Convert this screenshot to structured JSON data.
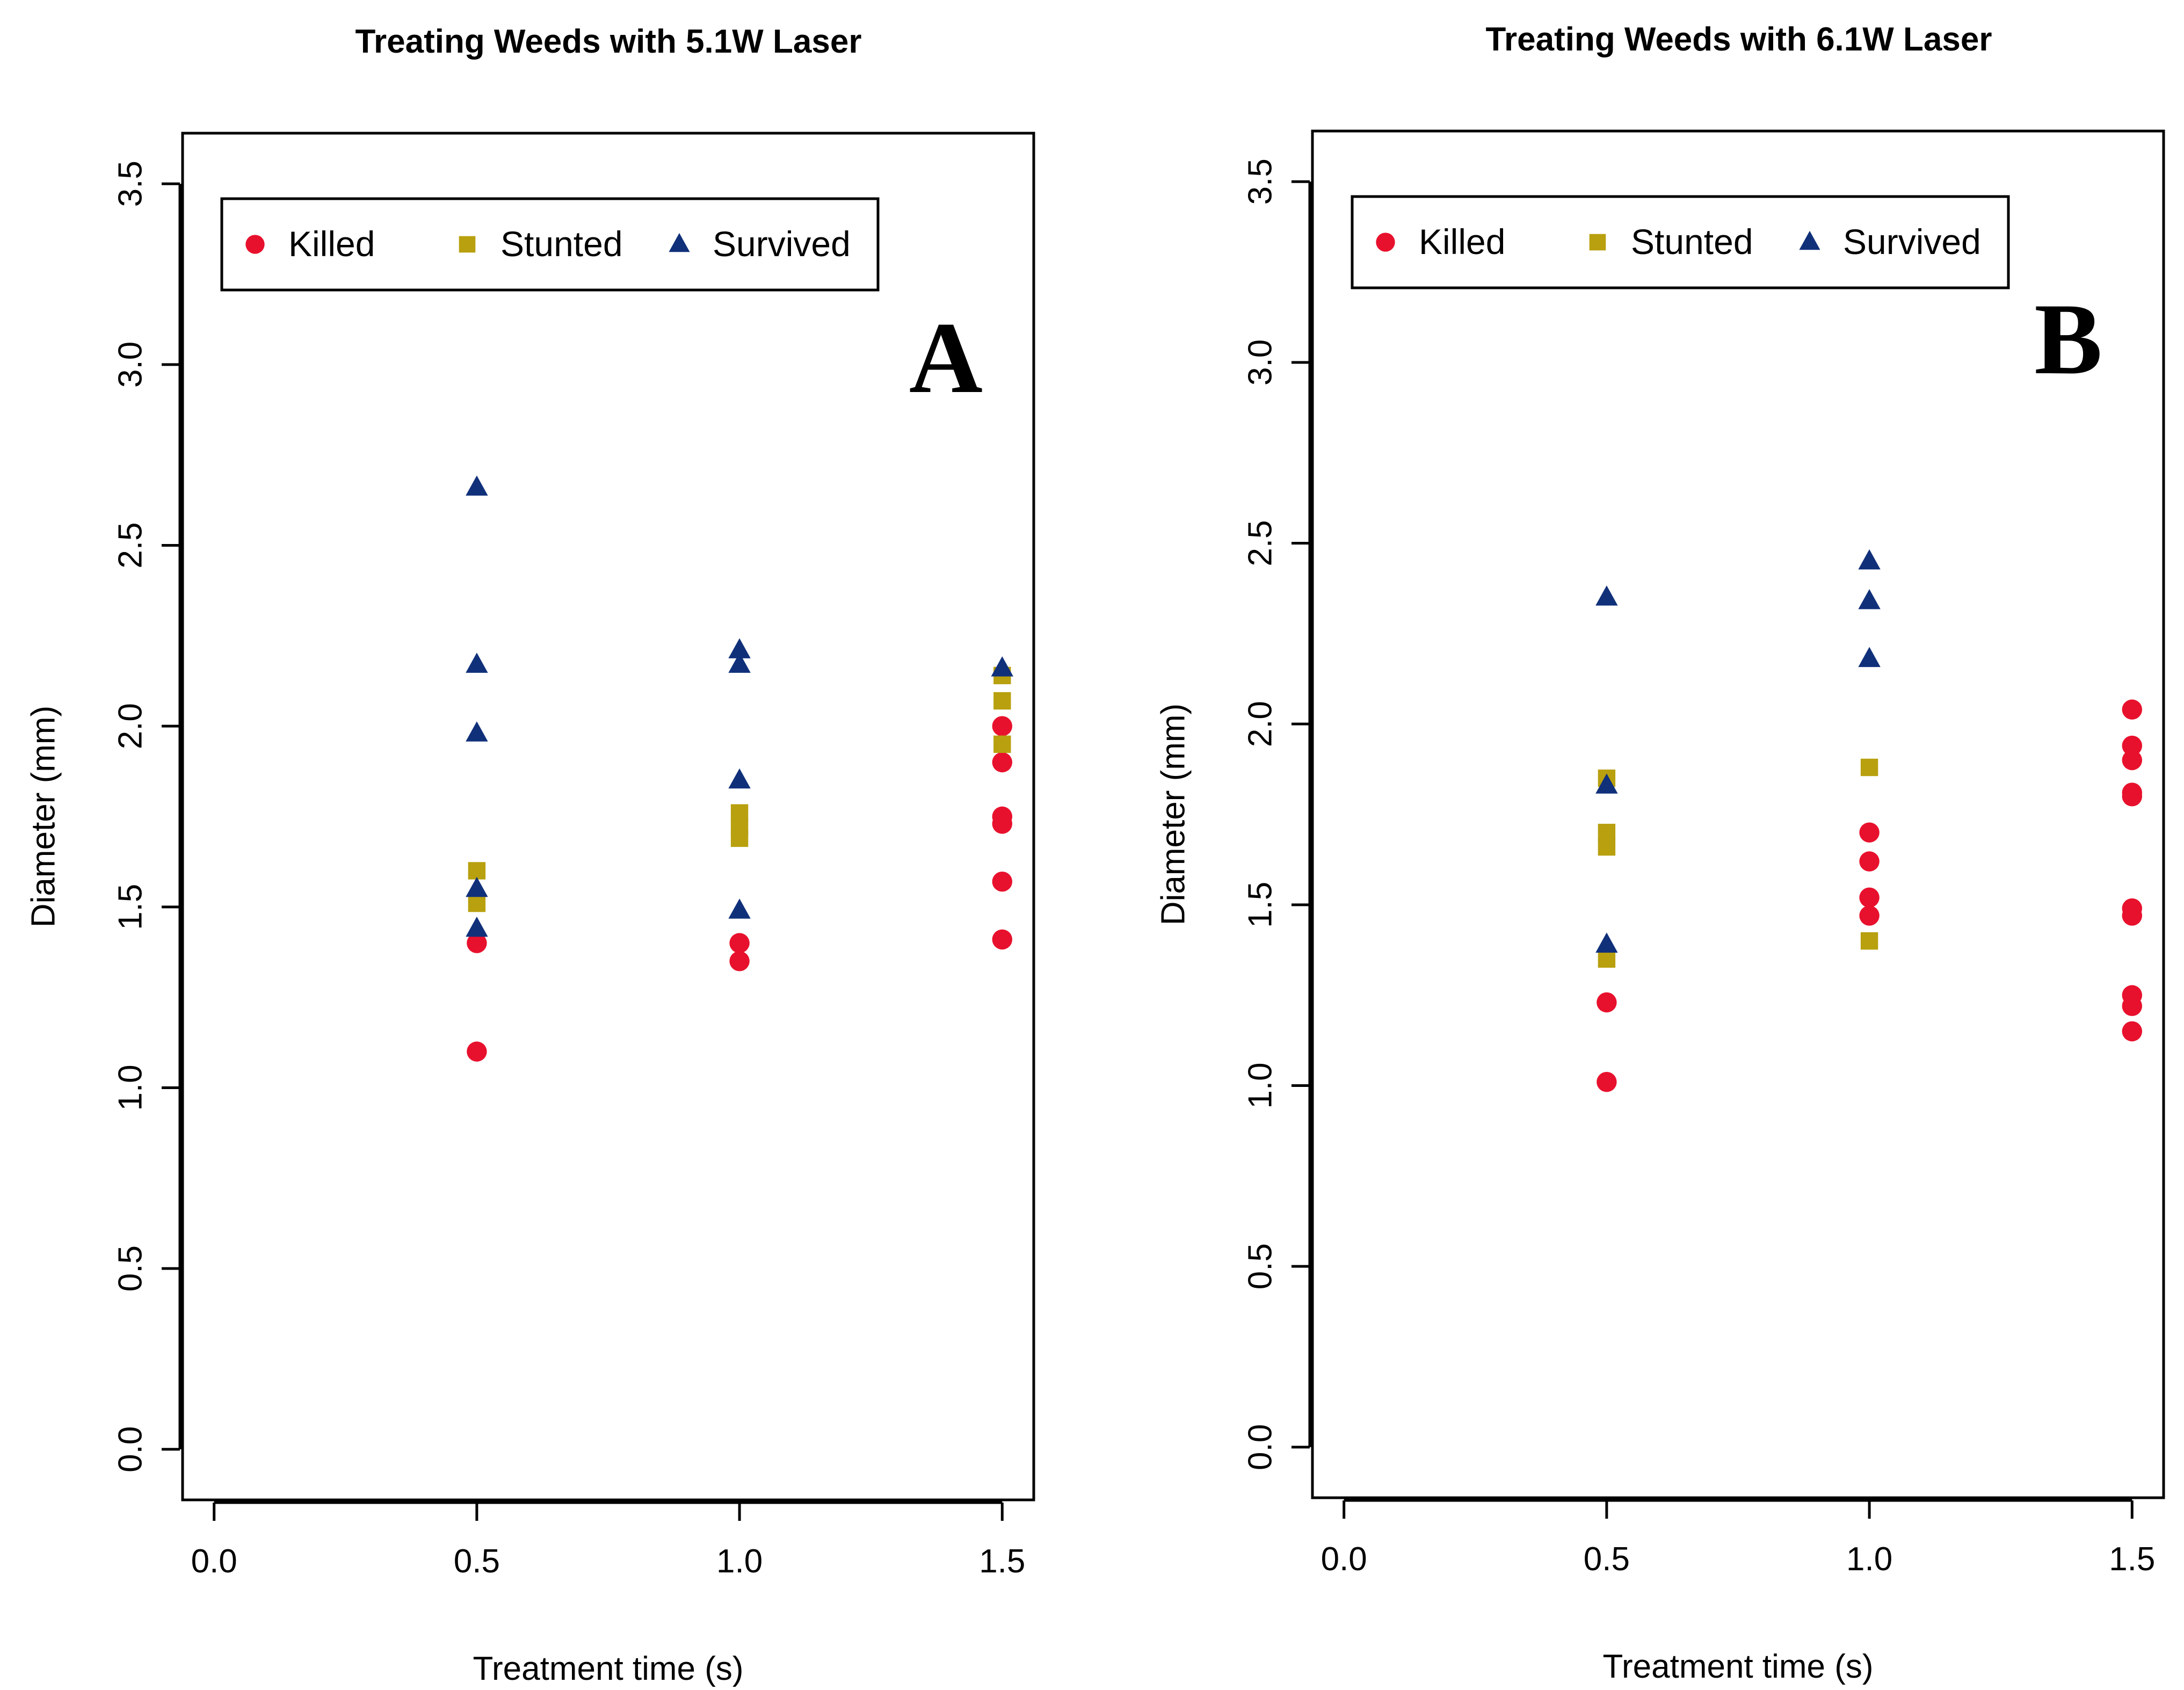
{
  "chart_data": [
    {
      "type": "scatter",
      "panel_label": "A",
      "title": "Treating Weeds with 5.1W Laser",
      "xlabel": "Treatment time (s)",
      "ylabel": "Diameter (mm)",
      "xlim": [
        0.0,
        1.5
      ],
      "ylim": [
        0.0,
        3.5
      ],
      "xticks": [
        "0.0",
        "0.5",
        "1.0",
        "1.5"
      ],
      "yticks": [
        "0.0",
        "0.5",
        "1.0",
        "1.5",
        "2.0",
        "2.5",
        "3.0",
        "3.5"
      ],
      "grid": false,
      "legend_position": "top-left",
      "series": [
        {
          "name": "Killed",
          "marker": "circle",
          "color": "#E8112D",
          "points": [
            [
              0.5,
              1.4
            ],
            [
              0.5,
              1.1
            ],
            [
              1.0,
              1.4
            ],
            [
              1.0,
              1.35
            ],
            [
              1.5,
              2.0
            ],
            [
              1.5,
              1.9
            ],
            [
              1.5,
              1.75
            ],
            [
              1.5,
              1.73
            ],
            [
              1.5,
              1.57
            ],
            [
              1.5,
              1.41
            ]
          ]
        },
        {
          "name": "Stunted",
          "marker": "square",
          "color": "#B8A00F",
          "points": [
            [
              0.5,
              1.6
            ],
            [
              0.5,
              1.51
            ],
            [
              1.0,
              1.76
            ],
            [
              1.0,
              1.72
            ],
            [
              1.0,
              1.69
            ],
            [
              1.5,
              2.14
            ],
            [
              1.5,
              2.07
            ],
            [
              1.5,
              1.95
            ]
          ]
        },
        {
          "name": "Survived",
          "marker": "triangle",
          "color": "#10307A",
          "points": [
            [
              0.5,
              2.66
            ],
            [
              0.5,
              2.17
            ],
            [
              0.5,
              1.98
            ],
            [
              0.5,
              1.55
            ],
            [
              0.5,
              1.44
            ],
            [
              1.0,
              2.21
            ],
            [
              1.0,
              2.17
            ],
            [
              1.0,
              1.85
            ],
            [
              1.0,
              1.49
            ],
            [
              1.5,
              2.16
            ]
          ]
        }
      ]
    },
    {
      "type": "scatter",
      "panel_label": "B",
      "title": "Treating Weeds with 6.1W Laser",
      "xlabel": "Treatment time (s)",
      "ylabel": "Diameter (mm)",
      "xlim": [
        0.0,
        1.5
      ],
      "ylim": [
        0.0,
        3.5
      ],
      "xticks": [
        "0.0",
        "0.5",
        "1.0",
        "1.5"
      ],
      "yticks": [
        "0.0",
        "0.5",
        "1.0",
        "1.5",
        "2.0",
        "2.5",
        "3.0",
        "3.5"
      ],
      "grid": false,
      "legend_position": "top-left",
      "series": [
        {
          "name": "Killed",
          "marker": "circle",
          "color": "#E8112D",
          "points": [
            [
              0.5,
              1.23
            ],
            [
              0.5,
              1.01
            ],
            [
              1.0,
              1.7
            ],
            [
              1.0,
              1.62
            ],
            [
              1.0,
              1.52
            ],
            [
              1.0,
              1.47
            ],
            [
              1.5,
              2.04
            ],
            [
              1.5,
              1.94
            ],
            [
              1.5,
              1.9
            ],
            [
              1.5,
              1.81
            ],
            [
              1.5,
              1.8
            ],
            [
              1.5,
              1.49
            ],
            [
              1.5,
              1.47
            ],
            [
              1.5,
              1.25
            ],
            [
              1.5,
              1.22
            ],
            [
              1.5,
              1.15
            ]
          ]
        },
        {
          "name": "Stunted",
          "marker": "square",
          "color": "#B8A00F",
          "points": [
            [
              0.5,
              1.85
            ],
            [
              0.5,
              1.7
            ],
            [
              0.5,
              1.66
            ],
            [
              0.5,
              1.35
            ],
            [
              1.0,
              1.88
            ],
            [
              1.0,
              1.4
            ]
          ]
        },
        {
          "name": "Survived",
          "marker": "triangle",
          "color": "#10307A",
          "points": [
            [
              0.5,
              2.35
            ],
            [
              0.5,
              1.83
            ],
            [
              0.5,
              1.39
            ],
            [
              1.0,
              2.45
            ],
            [
              1.0,
              2.34
            ],
            [
              1.0,
              2.18
            ]
          ]
        }
      ]
    }
  ]
}
